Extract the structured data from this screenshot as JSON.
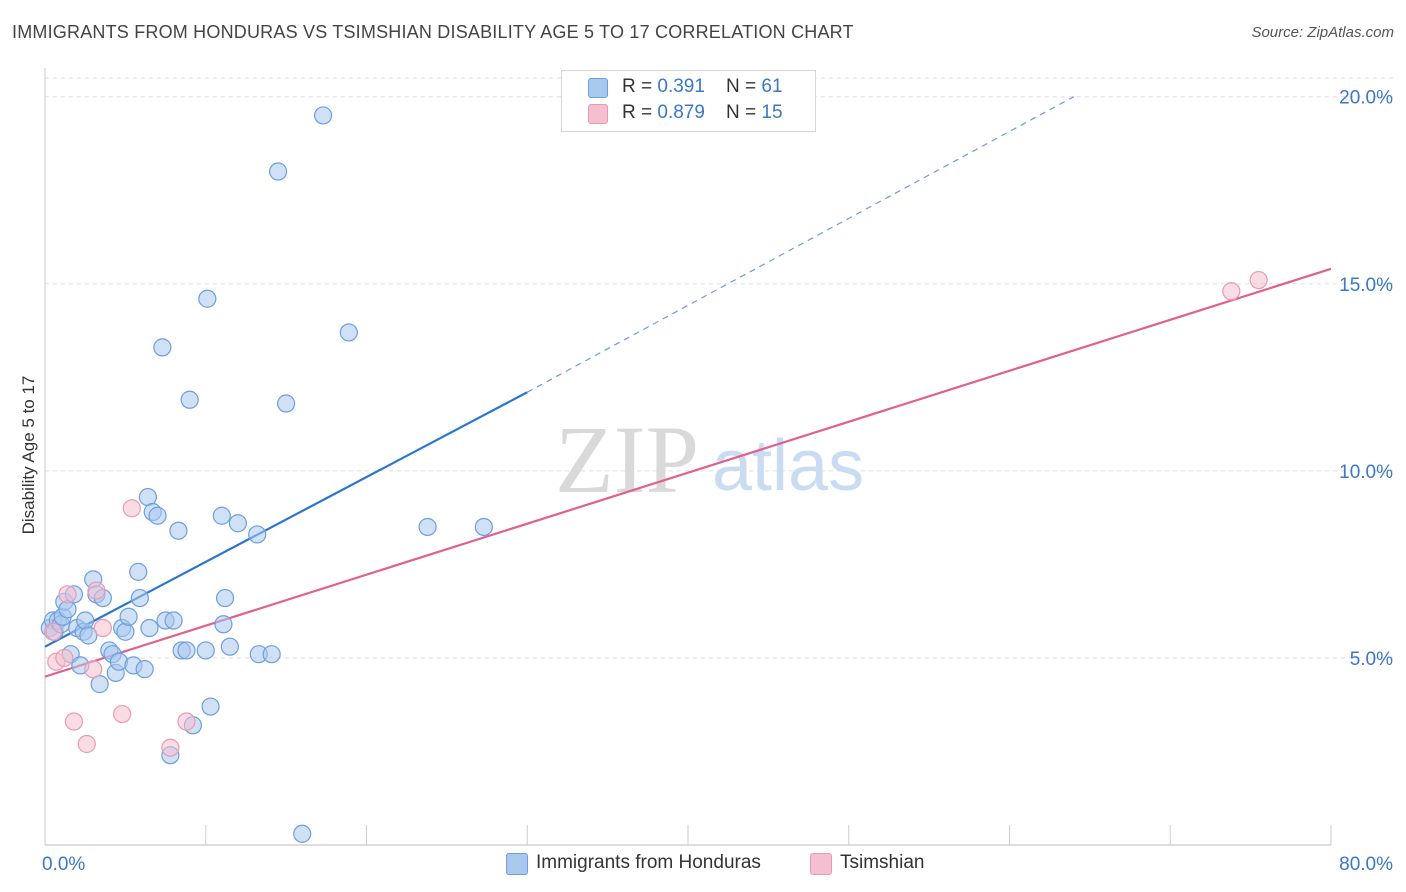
{
  "header": {
    "title": "IMMIGRANTS FROM HONDURAS VS TSIMSHIAN DISABILITY AGE 5 TO 17 CORRELATION CHART",
    "source": "Source: ZipAtlas.com"
  },
  "legend": {
    "rows": [
      {
        "r_label": "R = ",
        "r_value": "0.391",
        "n_label": "N = ",
        "n_value": "61"
      },
      {
        "r_label": "R = ",
        "r_value": "0.879",
        "n_label": "N = ",
        "n_value": "15"
      }
    ]
  },
  "bottom_legend": {
    "series1": "Immigrants from Honduras",
    "series2": "Tsimshian"
  },
  "watermark": {
    "zip": "ZIP",
    "atlas": "atlas"
  },
  "colors": {
    "blue_fill": "#a9c8ee",
    "blue_stroke": "#6c9fdd",
    "blue_line": "#2b74cf",
    "pink_fill": "#f6bfd0",
    "pink_stroke": "#e89ab4",
    "pink_line": "#e0608e",
    "grid": "#dddddd",
    "tick_label": "#3a78c8"
  },
  "chart_data": {
    "type": "scatter",
    "title": "IMMIGRANTS FROM HONDURAS VS TSIMSHIAN DISABILITY AGE 5 TO 17 CORRELATION CHART",
    "xlabel": "",
    "ylabel": "Disability Age 5 to 17",
    "xlim": [
      0,
      80
    ],
    "ylim": [
      0,
      20.5
    ],
    "x_tick_labels": [
      {
        "value": 0,
        "label": "0.0%"
      },
      {
        "value": 80,
        "label": "80.0%"
      }
    ],
    "y_tick_labels": [
      {
        "value": 5,
        "label": "5.0%"
      },
      {
        "value": 10,
        "label": "10.0%"
      },
      {
        "value": 15,
        "label": "15.0%"
      },
      {
        "value": 20,
        "label": "20.0%"
      }
    ],
    "series": [
      {
        "name": "Immigrants from Honduras",
        "R": 0.391,
        "N": 61,
        "trend": {
          "x0": 0,
          "y0": 5.3,
          "x1": 30,
          "y1": 12.1,
          "dash_x1": 64,
          "dash_y1": 20.0
        },
        "points": [
          [
            0.3,
            5.8
          ],
          [
            0.5,
            6.0
          ],
          [
            0.6,
            5.7
          ],
          [
            0.8,
            6.0
          ],
          [
            1.0,
            5.9
          ],
          [
            1.1,
            6.1
          ],
          [
            1.2,
            6.5
          ],
          [
            1.4,
            6.3
          ],
          [
            1.6,
            5.1
          ],
          [
            1.8,
            6.7
          ],
          [
            2.0,
            5.8
          ],
          [
            2.2,
            4.8
          ],
          [
            2.4,
            5.7
          ],
          [
            2.5,
            6.0
          ],
          [
            2.7,
            5.6
          ],
          [
            3.0,
            7.1
          ],
          [
            3.2,
            6.7
          ],
          [
            3.4,
            4.3
          ],
          [
            3.6,
            6.6
          ],
          [
            4.0,
            5.2
          ],
          [
            4.2,
            5.1
          ],
          [
            4.4,
            4.6
          ],
          [
            4.6,
            4.9
          ],
          [
            4.8,
            5.8
          ],
          [
            5.0,
            5.7
          ],
          [
            5.2,
            6.1
          ],
          [
            5.5,
            4.8
          ],
          [
            5.8,
            7.3
          ],
          [
            5.9,
            6.6
          ],
          [
            6.2,
            4.7
          ],
          [
            6.4,
            9.3
          ],
          [
            6.5,
            5.8
          ],
          [
            6.7,
            8.9
          ],
          [
            7.0,
            8.8
          ],
          [
            7.3,
            13.3
          ],
          [
            7.5,
            6.0
          ],
          [
            7.8,
            2.4
          ],
          [
            8.0,
            6.0
          ],
          [
            8.3,
            8.4
          ],
          [
            8.5,
            5.2
          ],
          [
            8.8,
            5.2
          ],
          [
            9.0,
            11.9
          ],
          [
            9.2,
            3.2
          ],
          [
            10.0,
            5.2
          ],
          [
            10.1,
            14.6
          ],
          [
            10.3,
            3.7
          ],
          [
            11.0,
            8.8
          ],
          [
            11.1,
            5.9
          ],
          [
            11.2,
            6.6
          ],
          [
            11.5,
            5.3
          ],
          [
            12.0,
            8.6
          ],
          [
            13.2,
            8.3
          ],
          [
            13.3,
            5.1
          ],
          [
            14.1,
            5.1
          ],
          [
            14.5,
            18.0
          ],
          [
            15.0,
            11.8
          ],
          [
            16.0,
            0.3
          ],
          [
            17.3,
            19.5
          ],
          [
            18.9,
            13.7
          ],
          [
            23.8,
            8.5
          ],
          [
            27.3,
            8.5
          ]
        ]
      },
      {
        "name": "Tsimshian",
        "R": 0.879,
        "N": 15,
        "trend": {
          "x0": 0,
          "y0": 4.5,
          "x1": 80,
          "y1": 15.4
        },
        "points": [
          [
            0.5,
            5.7
          ],
          [
            0.7,
            4.9
          ],
          [
            1.2,
            5.0
          ],
          [
            1.4,
            6.7
          ],
          [
            1.8,
            3.3
          ],
          [
            2.6,
            2.7
          ],
          [
            3.0,
            4.7
          ],
          [
            3.2,
            6.8
          ],
          [
            3.6,
            5.8
          ],
          [
            4.8,
            3.5
          ],
          [
            5.4,
            9.0
          ],
          [
            7.8,
            2.6
          ],
          [
            8.8,
            3.3
          ],
          [
            73.8,
            14.8
          ],
          [
            75.5,
            15.1
          ]
        ]
      }
    ]
  }
}
